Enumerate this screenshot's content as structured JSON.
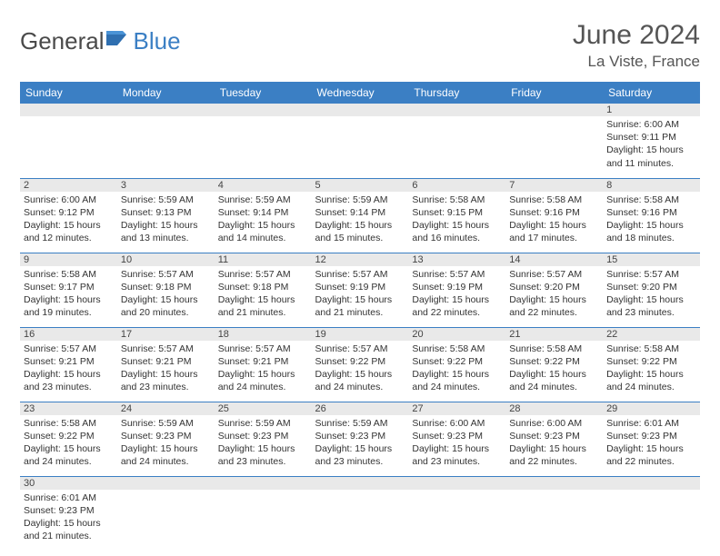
{
  "logo": {
    "text1": "General",
    "text2": "Blue"
  },
  "title": "June 2024",
  "location": "La Viste, France",
  "colors": {
    "header_bg": "#3b7fc4",
    "header_text": "#ffffff",
    "daynum_bg": "#e9e9e9",
    "border": "#3b7fc4",
    "title_color": "#555555"
  },
  "day_names": [
    "Sunday",
    "Monday",
    "Tuesday",
    "Wednesday",
    "Thursday",
    "Friday",
    "Saturday"
  ],
  "weeks": [
    [
      {
        "n": "",
        "sunrise": "",
        "sunset": "",
        "daylight": ""
      },
      {
        "n": "",
        "sunrise": "",
        "sunset": "",
        "daylight": ""
      },
      {
        "n": "",
        "sunrise": "",
        "sunset": "",
        "daylight": ""
      },
      {
        "n": "",
        "sunrise": "",
        "sunset": "",
        "daylight": ""
      },
      {
        "n": "",
        "sunrise": "",
        "sunset": "",
        "daylight": ""
      },
      {
        "n": "",
        "sunrise": "",
        "sunset": "",
        "daylight": ""
      },
      {
        "n": "1",
        "sunrise": "Sunrise: 6:00 AM",
        "sunset": "Sunset: 9:11 PM",
        "daylight": "Daylight: 15 hours and 11 minutes."
      }
    ],
    [
      {
        "n": "2",
        "sunrise": "Sunrise: 6:00 AM",
        "sunset": "Sunset: 9:12 PM",
        "daylight": "Daylight: 15 hours and 12 minutes."
      },
      {
        "n": "3",
        "sunrise": "Sunrise: 5:59 AM",
        "sunset": "Sunset: 9:13 PM",
        "daylight": "Daylight: 15 hours and 13 minutes."
      },
      {
        "n": "4",
        "sunrise": "Sunrise: 5:59 AM",
        "sunset": "Sunset: 9:14 PM",
        "daylight": "Daylight: 15 hours and 14 minutes."
      },
      {
        "n": "5",
        "sunrise": "Sunrise: 5:59 AM",
        "sunset": "Sunset: 9:14 PM",
        "daylight": "Daylight: 15 hours and 15 minutes."
      },
      {
        "n": "6",
        "sunrise": "Sunrise: 5:58 AM",
        "sunset": "Sunset: 9:15 PM",
        "daylight": "Daylight: 15 hours and 16 minutes."
      },
      {
        "n": "7",
        "sunrise": "Sunrise: 5:58 AM",
        "sunset": "Sunset: 9:16 PM",
        "daylight": "Daylight: 15 hours and 17 minutes."
      },
      {
        "n": "8",
        "sunrise": "Sunrise: 5:58 AM",
        "sunset": "Sunset: 9:16 PM",
        "daylight": "Daylight: 15 hours and 18 minutes."
      }
    ],
    [
      {
        "n": "9",
        "sunrise": "Sunrise: 5:58 AM",
        "sunset": "Sunset: 9:17 PM",
        "daylight": "Daylight: 15 hours and 19 minutes."
      },
      {
        "n": "10",
        "sunrise": "Sunrise: 5:57 AM",
        "sunset": "Sunset: 9:18 PM",
        "daylight": "Daylight: 15 hours and 20 minutes."
      },
      {
        "n": "11",
        "sunrise": "Sunrise: 5:57 AM",
        "sunset": "Sunset: 9:18 PM",
        "daylight": "Daylight: 15 hours and 21 minutes."
      },
      {
        "n": "12",
        "sunrise": "Sunrise: 5:57 AM",
        "sunset": "Sunset: 9:19 PM",
        "daylight": "Daylight: 15 hours and 21 minutes."
      },
      {
        "n": "13",
        "sunrise": "Sunrise: 5:57 AM",
        "sunset": "Sunset: 9:19 PM",
        "daylight": "Daylight: 15 hours and 22 minutes."
      },
      {
        "n": "14",
        "sunrise": "Sunrise: 5:57 AM",
        "sunset": "Sunset: 9:20 PM",
        "daylight": "Daylight: 15 hours and 22 minutes."
      },
      {
        "n": "15",
        "sunrise": "Sunrise: 5:57 AM",
        "sunset": "Sunset: 9:20 PM",
        "daylight": "Daylight: 15 hours and 23 minutes."
      }
    ],
    [
      {
        "n": "16",
        "sunrise": "Sunrise: 5:57 AM",
        "sunset": "Sunset: 9:21 PM",
        "daylight": "Daylight: 15 hours and 23 minutes."
      },
      {
        "n": "17",
        "sunrise": "Sunrise: 5:57 AM",
        "sunset": "Sunset: 9:21 PM",
        "daylight": "Daylight: 15 hours and 23 minutes."
      },
      {
        "n": "18",
        "sunrise": "Sunrise: 5:57 AM",
        "sunset": "Sunset: 9:21 PM",
        "daylight": "Daylight: 15 hours and 24 minutes."
      },
      {
        "n": "19",
        "sunrise": "Sunrise: 5:57 AM",
        "sunset": "Sunset: 9:22 PM",
        "daylight": "Daylight: 15 hours and 24 minutes."
      },
      {
        "n": "20",
        "sunrise": "Sunrise: 5:58 AM",
        "sunset": "Sunset: 9:22 PM",
        "daylight": "Daylight: 15 hours and 24 minutes."
      },
      {
        "n": "21",
        "sunrise": "Sunrise: 5:58 AM",
        "sunset": "Sunset: 9:22 PM",
        "daylight": "Daylight: 15 hours and 24 minutes."
      },
      {
        "n": "22",
        "sunrise": "Sunrise: 5:58 AM",
        "sunset": "Sunset: 9:22 PM",
        "daylight": "Daylight: 15 hours and 24 minutes."
      }
    ],
    [
      {
        "n": "23",
        "sunrise": "Sunrise: 5:58 AM",
        "sunset": "Sunset: 9:22 PM",
        "daylight": "Daylight: 15 hours and 24 minutes."
      },
      {
        "n": "24",
        "sunrise": "Sunrise: 5:59 AM",
        "sunset": "Sunset: 9:23 PM",
        "daylight": "Daylight: 15 hours and 24 minutes."
      },
      {
        "n": "25",
        "sunrise": "Sunrise: 5:59 AM",
        "sunset": "Sunset: 9:23 PM",
        "daylight": "Daylight: 15 hours and 23 minutes."
      },
      {
        "n": "26",
        "sunrise": "Sunrise: 5:59 AM",
        "sunset": "Sunset: 9:23 PM",
        "daylight": "Daylight: 15 hours and 23 minutes."
      },
      {
        "n": "27",
        "sunrise": "Sunrise: 6:00 AM",
        "sunset": "Sunset: 9:23 PM",
        "daylight": "Daylight: 15 hours and 23 minutes."
      },
      {
        "n": "28",
        "sunrise": "Sunrise: 6:00 AM",
        "sunset": "Sunset: 9:23 PM",
        "daylight": "Daylight: 15 hours and 22 minutes."
      },
      {
        "n": "29",
        "sunrise": "Sunrise: 6:01 AM",
        "sunset": "Sunset: 9:23 PM",
        "daylight": "Daylight: 15 hours and 22 minutes."
      }
    ],
    [
      {
        "n": "30",
        "sunrise": "Sunrise: 6:01 AM",
        "sunset": "Sunset: 9:23 PM",
        "daylight": "Daylight: 15 hours and 21 minutes."
      },
      {
        "n": "",
        "sunrise": "",
        "sunset": "",
        "daylight": ""
      },
      {
        "n": "",
        "sunrise": "",
        "sunset": "",
        "daylight": ""
      },
      {
        "n": "",
        "sunrise": "",
        "sunset": "",
        "daylight": ""
      },
      {
        "n": "",
        "sunrise": "",
        "sunset": "",
        "daylight": ""
      },
      {
        "n": "",
        "sunrise": "",
        "sunset": "",
        "daylight": ""
      },
      {
        "n": "",
        "sunrise": "",
        "sunset": "",
        "daylight": ""
      }
    ]
  ]
}
